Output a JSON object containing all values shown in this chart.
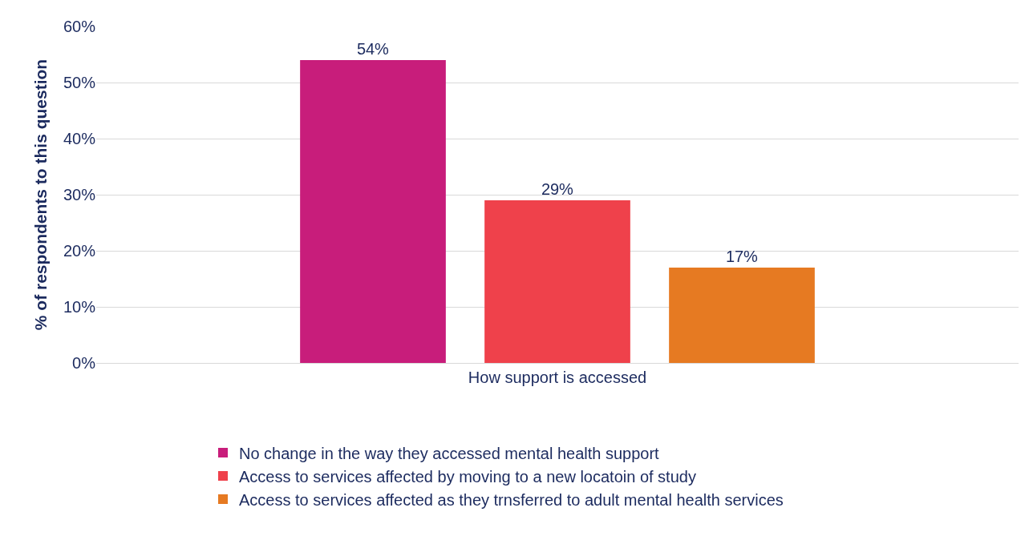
{
  "chart_data": {
    "type": "bar",
    "ylabel": "% of respondents to this question",
    "categories": [
      "How support is accessed"
    ],
    "series": [
      {
        "name": "No change in the way they accessed mental health support",
        "color": "#c81d7b",
        "values": [
          54
        ],
        "value_labels": [
          "54%"
        ]
      },
      {
        "name": "Access to services affected by moving to a new locatoin of study",
        "color": "#ef414b",
        "values": [
          29
        ],
        "value_labels": [
          "29%"
        ]
      },
      {
        "name": "Access to services affected as they trnsferred to adult mental health services",
        "color": "#e67a22",
        "values": [
          17
        ],
        "value_labels": [
          "17%"
        ]
      }
    ],
    "ylim": [
      0,
      60
    ],
    "yticks": [
      {
        "value": 0,
        "label": "0%"
      },
      {
        "value": 10,
        "label": "10%"
      },
      {
        "value": 20,
        "label": "20%"
      },
      {
        "value": 30,
        "label": "30%"
      },
      {
        "value": 40,
        "label": "40%"
      },
      {
        "value": 50,
        "label": "50%"
      },
      {
        "value": 60,
        "label": "60%"
      }
    ],
    "grid": "y",
    "legend": "bottom"
  }
}
